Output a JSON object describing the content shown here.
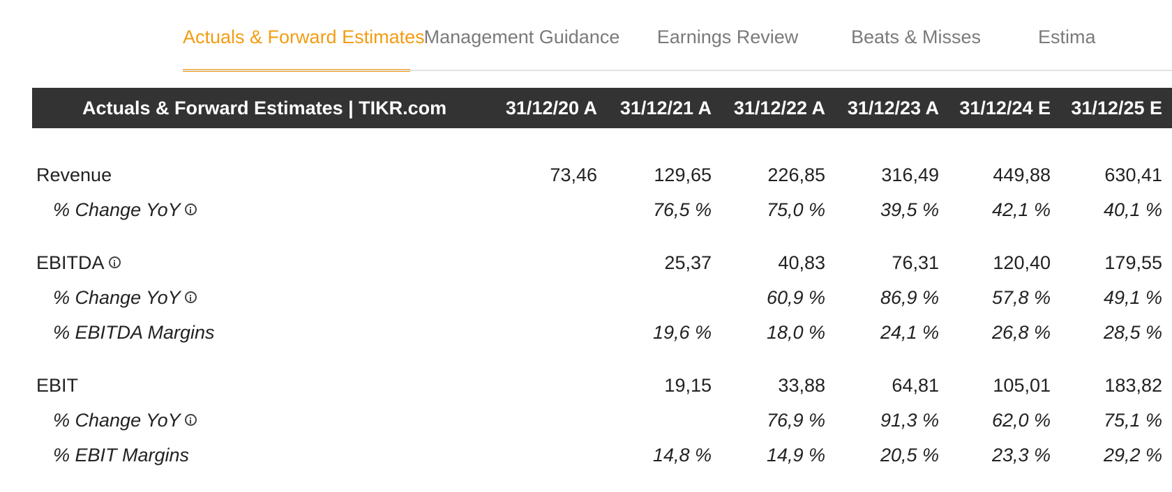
{
  "tabs": [
    {
      "label": "Actuals & Forward Estimates",
      "active": true
    },
    {
      "label": "Management Guidance",
      "active": false
    },
    {
      "label": "Earnings Review",
      "active": false
    },
    {
      "label": "Beats & Misses",
      "active": false
    },
    {
      "label": "Estima",
      "active": false
    }
  ],
  "colors": {
    "accent": "#f39c12",
    "header_bg": "#333333"
  },
  "table": {
    "title": "Actuals & Forward Estimates | TIKR.com",
    "columns": [
      "31/12/20 A",
      "31/12/21 A",
      "31/12/22 A",
      "31/12/23 A",
      "31/12/24 E",
      "31/12/25 E"
    ],
    "rows": [
      {
        "label": "Revenue",
        "type": "main",
        "info": false,
        "values": [
          "73,46",
          "129,65",
          "226,85",
          "316,49",
          "449,88",
          "630,41"
        ]
      },
      {
        "label": "% Change YoY",
        "type": "sub",
        "info": true,
        "values": [
          "",
          "76,5 %",
          "75,0 %",
          "39,5 %",
          "42,1 %",
          "40,1 %"
        ]
      },
      {
        "label": "EBITDA",
        "type": "main",
        "info": true,
        "values": [
          "",
          "25,37",
          "40,83",
          "76,31",
          "120,40",
          "179,55"
        ]
      },
      {
        "label": "% Change YoY",
        "type": "sub",
        "info": true,
        "values": [
          "",
          "",
          "60,9 %",
          "86,9 %",
          "57,8 %",
          "49,1 %"
        ]
      },
      {
        "label": "% EBITDA Margins",
        "type": "sub",
        "info": false,
        "values": [
          "",
          "19,6 %",
          "18,0 %",
          "24,1 %",
          "26,8 %",
          "28,5 %"
        ]
      },
      {
        "label": "EBIT",
        "type": "main",
        "info": false,
        "values": [
          "",
          "19,15",
          "33,88",
          "64,81",
          "105,01",
          "183,82"
        ]
      },
      {
        "label": "% Change YoY",
        "type": "sub",
        "info": true,
        "values": [
          "",
          "",
          "76,9 %",
          "91,3 %",
          "62,0 %",
          "75,1 %"
        ]
      },
      {
        "label": "% EBIT Margins",
        "type": "sub",
        "info": false,
        "values": [
          "",
          "14,8 %",
          "14,9 %",
          "20,5 %",
          "23,3 %",
          "29,2 %"
        ]
      }
    ]
  }
}
